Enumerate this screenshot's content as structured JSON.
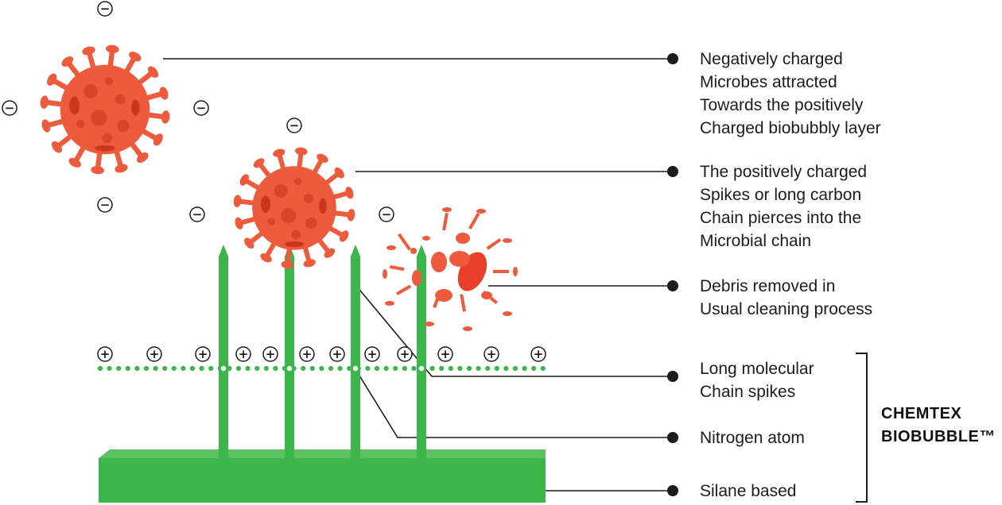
{
  "labels": {
    "negatively_charged": [
      "Negatively charged",
      "Microbes attracted",
      "Towards the positively",
      "Charged biobubbly layer"
    ],
    "positive_spikes": [
      "The positively charged",
      "Spikes or long carbon",
      "Chain pierces into the",
      "Microbial chain"
    ],
    "debris": [
      "Debris removed in",
      "Usual cleaning process"
    ],
    "long_chain": [
      "Long molecular",
      "Chain spikes"
    ],
    "nitrogen": [
      "Nitrogen atom"
    ],
    "silane": [
      "Silane based"
    ]
  },
  "brand": [
    "CHEMTEX",
    "BIOBUBBLE™"
  ],
  "charge_symbols": {
    "negative": "−",
    "positive": "+"
  },
  "colors": {
    "microbe_body": "#ee5a3c",
    "microbe_dark": "#c8361c",
    "spike_green": "#3cb54a",
    "layer_green": "#3cb54a",
    "layer_top": "#5cc163",
    "line": "#1c1c1c"
  }
}
